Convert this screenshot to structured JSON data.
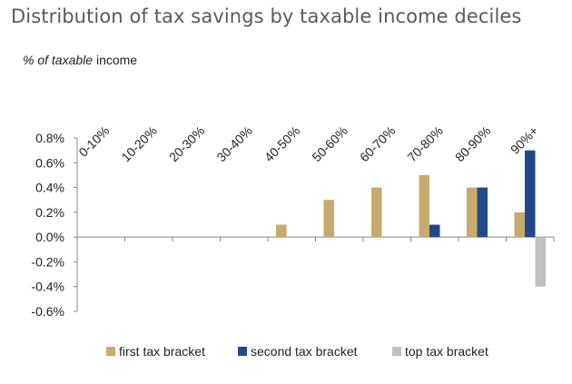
{
  "chart_data": {
    "type": "bar",
    "title": "Distribution of tax savings by taxable income deciles",
    "ylabel_italic": "% of  taxable",
    "ylabel_rest": " income",
    "categories": [
      "0-10%",
      "10-20%",
      "20-30%",
      "30-40%",
      "40-50%",
      "50-60%",
      "60-70%",
      "70-80%",
      "80-90%",
      "90%+"
    ],
    "series": [
      {
        "name": "first tax bracket",
        "color": "#c8aa6e",
        "values": [
          0,
          0,
          0,
          0,
          0.1,
          0.3,
          0.4,
          0.5,
          0.4,
          0.2
        ]
      },
      {
        "name": "second tax bracket",
        "color": "#1f4a8a",
        "values": [
          0,
          0,
          0,
          0,
          0,
          0,
          0,
          0.1,
          0.4,
          0.7
        ]
      },
      {
        "name": "top tax bracket",
        "color": "#c0c0c0",
        "values": [
          0,
          0,
          0,
          0,
          0,
          0,
          0,
          0,
          0,
          -0.4
        ]
      }
    ],
    "ylim": [
      -0.6,
      0.8
    ],
    "yticks": [
      "0.8%",
      "0.6%",
      "0.4%",
      "0.2%",
      "0.0%",
      "-0.2%",
      "-0.4%",
      "-0.6%"
    ],
    "ytick_values": [
      0.8,
      0.6,
      0.4,
      0.2,
      0,
      -0.2,
      -0.4,
      -0.6
    ],
    "legend": "bottom",
    "grid": false
  }
}
